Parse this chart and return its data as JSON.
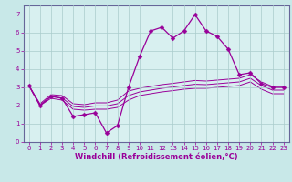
{
  "x": [
    0,
    1,
    2,
    3,
    4,
    5,
    6,
    7,
    8,
    9,
    10,
    11,
    12,
    13,
    14,
    15,
    16,
    17,
    18,
    19,
    20,
    21,
    22,
    23
  ],
  "y_main": [
    3.1,
    2.0,
    2.5,
    2.4,
    1.4,
    1.5,
    1.6,
    0.5,
    0.9,
    3.0,
    4.7,
    6.1,
    6.3,
    5.7,
    6.1,
    7.0,
    6.1,
    5.8,
    5.1,
    3.7,
    3.8,
    3.2,
    3.0,
    3.0
  ],
  "y_low": [
    3.1,
    2.0,
    2.4,
    2.3,
    1.8,
    1.75,
    1.8,
    1.8,
    1.9,
    2.3,
    2.55,
    2.65,
    2.75,
    2.82,
    2.9,
    2.95,
    2.95,
    3.0,
    3.05,
    3.1,
    3.3,
    2.9,
    2.65,
    2.65
  ],
  "y_mid": [
    3.1,
    2.05,
    2.5,
    2.42,
    1.95,
    1.9,
    1.98,
    1.98,
    2.1,
    2.55,
    2.75,
    2.85,
    2.95,
    3.02,
    3.1,
    3.17,
    3.15,
    3.2,
    3.25,
    3.3,
    3.5,
    3.1,
    2.85,
    2.85
  ],
  "y_high": [
    3.1,
    2.1,
    2.6,
    2.55,
    2.1,
    2.05,
    2.15,
    2.15,
    2.3,
    2.8,
    2.95,
    3.05,
    3.15,
    3.22,
    3.3,
    3.38,
    3.35,
    3.4,
    3.45,
    3.5,
    3.7,
    3.3,
    3.05,
    3.05
  ],
  "line_color": "#990099",
  "bg_color": "#c8e8e8",
  "plot_bg": "#d8f0f0",
  "spine_color": "#666699",
  "grid_color": "#aacccc",
  "xlabel": "Windchill (Refroidissement éolien,°C)",
  "ylim": [
    0,
    7.5
  ],
  "xlim": [
    -0.5,
    23.5
  ],
  "yticks": [
    0,
    1,
    2,
    3,
    4,
    5,
    6,
    7
  ],
  "xticks": [
    0,
    1,
    2,
    3,
    4,
    5,
    6,
    7,
    8,
    9,
    10,
    11,
    12,
    13,
    14,
    15,
    16,
    17,
    18,
    19,
    20,
    21,
    22,
    23
  ],
  "tick_fontsize": 5.0,
  "xlabel_fontsize": 6.0,
  "marker_size": 2.5
}
